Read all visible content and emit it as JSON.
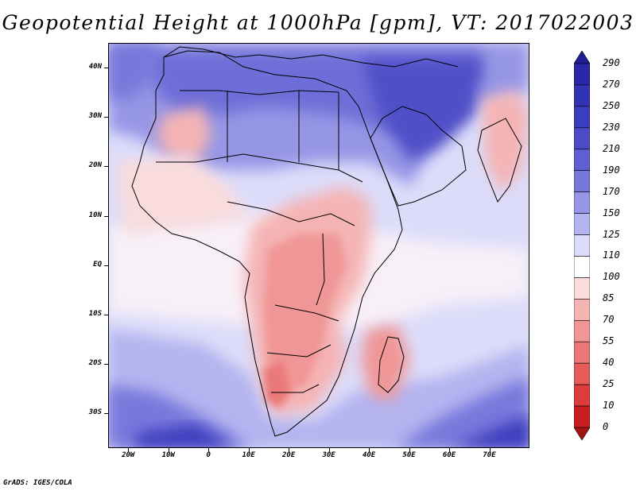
{
  "title": "Geopotential Height at 1000hPa [gpm], VT: 2017022003",
  "credit": "GrADS: IGES/COLA",
  "map": {
    "lon_range": [
      -25,
      80
    ],
    "lat_range": [
      -37,
      45
    ],
    "y_ticks": [
      {
        "lat": 40,
        "label": "40N"
      },
      {
        "lat": 30,
        "label": "30N"
      },
      {
        "lat": 20,
        "label": "20N"
      },
      {
        "lat": 10,
        "label": "10N"
      },
      {
        "lat": 0,
        "label": "EQ"
      },
      {
        "lat": -10,
        "label": "10S"
      },
      {
        "lat": -20,
        "label": "20S"
      },
      {
        "lat": -30,
        "label": "30S"
      }
    ],
    "x_ticks": [
      {
        "lon": -20,
        "label": "20W"
      },
      {
        "lon": -10,
        "label": "10W"
      },
      {
        "lon": 0,
        "label": "0"
      },
      {
        "lon": 10,
        "label": "10E"
      },
      {
        "lon": 20,
        "label": "20E"
      },
      {
        "lon": 30,
        "label": "30E"
      },
      {
        "lon": 40,
        "label": "40E"
      },
      {
        "lon": 50,
        "label": "50E"
      },
      {
        "lon": 60,
        "label": "60E"
      },
      {
        "lon": 70,
        "label": "70E"
      }
    ]
  },
  "colorbar": {
    "labels": [
      "290",
      "270",
      "250",
      "230",
      "210",
      "190",
      "170",
      "150",
      "125",
      "110",
      "100",
      "85",
      "70",
      "55",
      "40",
      "25",
      "10",
      "0"
    ],
    "colors": [
      "#1e1e96",
      "#2828a8",
      "#3232b4",
      "#3c3cbe",
      "#4b4bc8",
      "#5f5fd2",
      "#7878dc",
      "#9696e6",
      "#b4b4f0",
      "#dcdcfa",
      "#ffffff",
      "#fadcdc",
      "#f5b4b4",
      "#f09696",
      "#eb7878",
      "#e65a5a",
      "#dc3c3c",
      "#c81e1e",
      "#a01414"
    ]
  }
}
